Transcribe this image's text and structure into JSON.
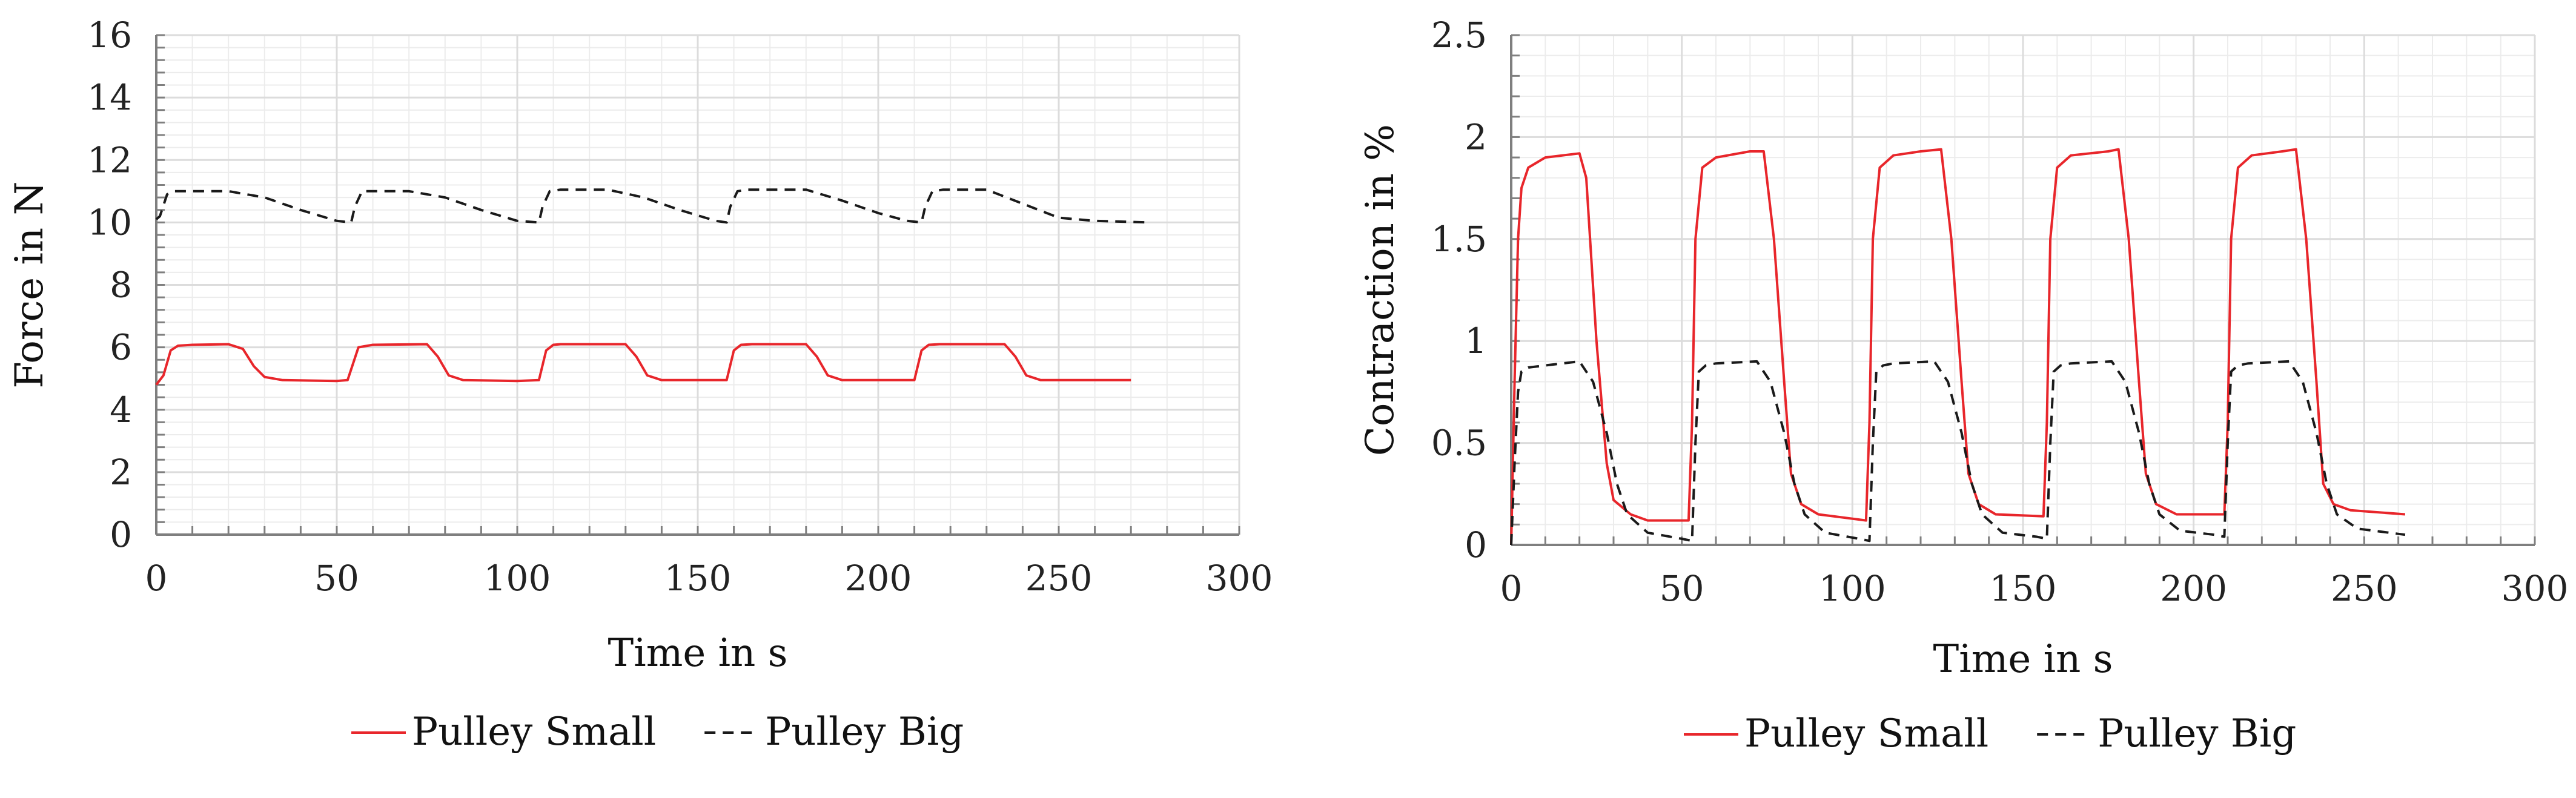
{
  "colors": {
    "small": "#e8262b",
    "big": "#1a1a1a",
    "grid": "#dcdcdc",
    "axis": "#7f7f7f"
  },
  "chart_data": [
    {
      "type": "line",
      "title": "",
      "xlabel": "Time in s",
      "ylabel": "Force in N",
      "xlim": [
        0,
        300
      ],
      "ylim": [
        0,
        16
      ],
      "xticks": [
        0,
        50,
        100,
        150,
        200,
        250,
        300
      ],
      "yticks": [
        0,
        2,
        4,
        6,
        8,
        10,
        12,
        14,
        16
      ],
      "xtick_labels": [
        "0",
        "50",
        "100",
        "150",
        "200",
        "250",
        "300"
      ],
      "ytick_labels": [
        "0",
        "2",
        "4",
        "6",
        "8",
        "10",
        "12",
        "14",
        "16"
      ],
      "grid": true,
      "legend": "bottom",
      "series": [
        {
          "name": "Pulley Small",
          "style": "solid",
          "color": "#e8262b",
          "x": [
            0,
            2,
            4,
            6,
            10,
            20,
            24,
            27,
            30,
            35,
            50,
            53,
            56,
            60,
            75,
            78,
            81,
            85,
            100,
            106,
            108,
            110,
            112,
            130,
            133,
            136,
            140,
            158,
            160,
            162,
            165,
            180,
            183,
            186,
            190,
            210,
            212,
            214,
            217,
            235,
            238,
            241,
            245,
            270
          ],
          "values": [
            4.8,
            5.1,
            5.9,
            6.05,
            6.08,
            6.1,
            5.95,
            5.4,
            5.05,
            4.95,
            4.92,
            4.95,
            6.0,
            6.08,
            6.1,
            5.7,
            5.1,
            4.95,
            4.92,
            4.95,
            5.9,
            6.08,
            6.1,
            6.1,
            5.7,
            5.1,
            4.95,
            4.95,
            5.9,
            6.08,
            6.1,
            6.1,
            5.7,
            5.1,
            4.95,
            4.95,
            5.9,
            6.08,
            6.1,
            6.1,
            5.7,
            5.1,
            4.95,
            4.95
          ]
        },
        {
          "name": "Pulley Big",
          "style": "dashed",
          "color": "#1a1a1a",
          "x": [
            0,
            1,
            3,
            5,
            10,
            20,
            30,
            40,
            50,
            54,
            55,
            57,
            60,
            70,
            80,
            90,
            100,
            106,
            107,
            109,
            112,
            125,
            135,
            145,
            155,
            158,
            159,
            161,
            164,
            180,
            190,
            200,
            208,
            212,
            213,
            215,
            218,
            230,
            240,
            250,
            260,
            275
          ],
          "values": [
            10.1,
            10.2,
            10.9,
            11.0,
            11.0,
            11.0,
            10.8,
            10.4,
            10.05,
            10.0,
            10.5,
            11.0,
            11.0,
            11.0,
            10.8,
            10.4,
            10.05,
            10.0,
            10.5,
            11.0,
            11.05,
            11.05,
            10.8,
            10.4,
            10.05,
            10.0,
            10.5,
            11.0,
            11.05,
            11.05,
            10.7,
            10.3,
            10.05,
            10.0,
            10.5,
            11.0,
            11.05,
            11.05,
            10.6,
            10.15,
            10.05,
            10.0
          ]
        }
      ],
      "legend_entries": [
        "Pulley Small",
        "Pulley Big"
      ]
    },
    {
      "type": "line",
      "title": "",
      "xlabel": "Time in s",
      "ylabel": "Contraction in %",
      "xlim": [
        0,
        300
      ],
      "ylim": [
        0,
        2.5
      ],
      "xticks": [
        0,
        50,
        100,
        150,
        200,
        250,
        300
      ],
      "yticks": [
        0,
        0.5,
        1,
        1.5,
        2,
        2.5
      ],
      "xtick_labels": [
        "0",
        "50",
        "100",
        "150",
        "200",
        "250",
        "300"
      ],
      "ytick_labels": [
        "0",
        "0.5",
        "1",
        "1.5",
        "2",
        "2.5"
      ],
      "grid": true,
      "legend": "bottom",
      "series": [
        {
          "name": "Pulley Small",
          "style": "solid",
          "color": "#e8262b",
          "x": [
            0,
            1,
            2,
            3,
            5,
            10,
            20,
            22,
            25,
            28,
            30,
            35,
            40,
            52,
            53,
            54,
            56,
            60,
            70,
            74,
            77,
            80,
            82,
            85,
            90,
            104,
            105,
            106,
            108,
            112,
            120,
            126,
            129,
            132,
            134,
            137,
            142,
            156,
            157,
            158,
            160,
            164,
            175,
            178,
            181,
            184,
            186,
            189,
            195,
            209,
            210,
            211,
            213,
            217,
            226,
            230,
            233,
            236,
            238,
            241,
            246,
            262
          ],
          "values": [
            0.0,
            0.8,
            1.5,
            1.75,
            1.85,
            1.9,
            1.92,
            1.8,
            1.0,
            0.4,
            0.22,
            0.15,
            0.12,
            0.12,
            0.6,
            1.5,
            1.85,
            1.9,
            1.93,
            1.93,
            1.5,
            0.8,
            0.35,
            0.2,
            0.15,
            0.12,
            0.6,
            1.5,
            1.85,
            1.91,
            1.93,
            1.94,
            1.5,
            0.8,
            0.35,
            0.2,
            0.15,
            0.14,
            0.6,
            1.5,
            1.85,
            1.91,
            1.93,
            1.94,
            1.5,
            0.8,
            0.35,
            0.2,
            0.15,
            0.15,
            0.6,
            1.5,
            1.85,
            1.91,
            1.93,
            1.94,
            1.5,
            0.8,
            0.3,
            0.2,
            0.17,
            0.15
          ]
        },
        {
          "name": "Pulley Big",
          "style": "dashed",
          "color": "#1a1a1a",
          "x": [
            0,
            1,
            2,
            3,
            5,
            10,
            20,
            24,
            28,
            31,
            34,
            40,
            50,
            53,
            54,
            55,
            57,
            60,
            72,
            76,
            80,
            83,
            86,
            92,
            102,
            105,
            106,
            107,
            109,
            112,
            124,
            128,
            132,
            135,
            138,
            144,
            154,
            157,
            158,
            159,
            161,
            164,
            176,
            180,
            184,
            187,
            190,
            196,
            206,
            209,
            210,
            211,
            213,
            216,
            228,
            232,
            236,
            239,
            242,
            248,
            262
          ],
          "values": [
            0.0,
            0.4,
            0.75,
            0.85,
            0.87,
            0.88,
            0.9,
            0.8,
            0.55,
            0.3,
            0.15,
            0.06,
            0.03,
            0.02,
            0.5,
            0.85,
            0.88,
            0.89,
            0.9,
            0.8,
            0.55,
            0.3,
            0.15,
            0.06,
            0.03,
            0.02,
            0.5,
            0.85,
            0.88,
            0.89,
            0.9,
            0.8,
            0.55,
            0.3,
            0.15,
            0.06,
            0.04,
            0.03,
            0.5,
            0.85,
            0.88,
            0.89,
            0.9,
            0.8,
            0.55,
            0.3,
            0.15,
            0.07,
            0.05,
            0.04,
            0.5,
            0.85,
            0.88,
            0.89,
            0.9,
            0.8,
            0.55,
            0.3,
            0.15,
            0.08,
            0.05
          ]
        }
      ],
      "legend_entries": [
        "Pulley Small",
        "Pulley Big"
      ]
    }
  ]
}
